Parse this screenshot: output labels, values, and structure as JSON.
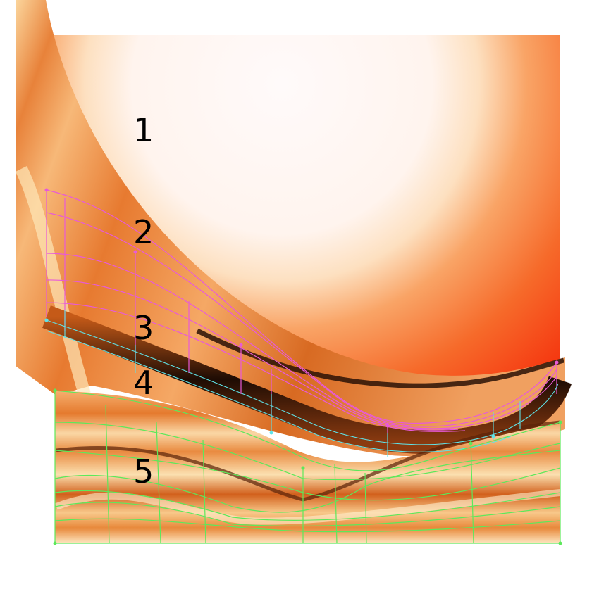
{
  "labels": [
    "1",
    "2",
    "3",
    "4",
    "5"
  ],
  "colors": {
    "mesh_pink": "#e85ad8",
    "mesh_cyan": "#5fe3e8",
    "mesh_green": "#5de85a",
    "glow_white": "#fffafa",
    "hot_red": "#f5350f",
    "drape_orange": "#f08a3c",
    "dark_fold": "#2a1206"
  }
}
